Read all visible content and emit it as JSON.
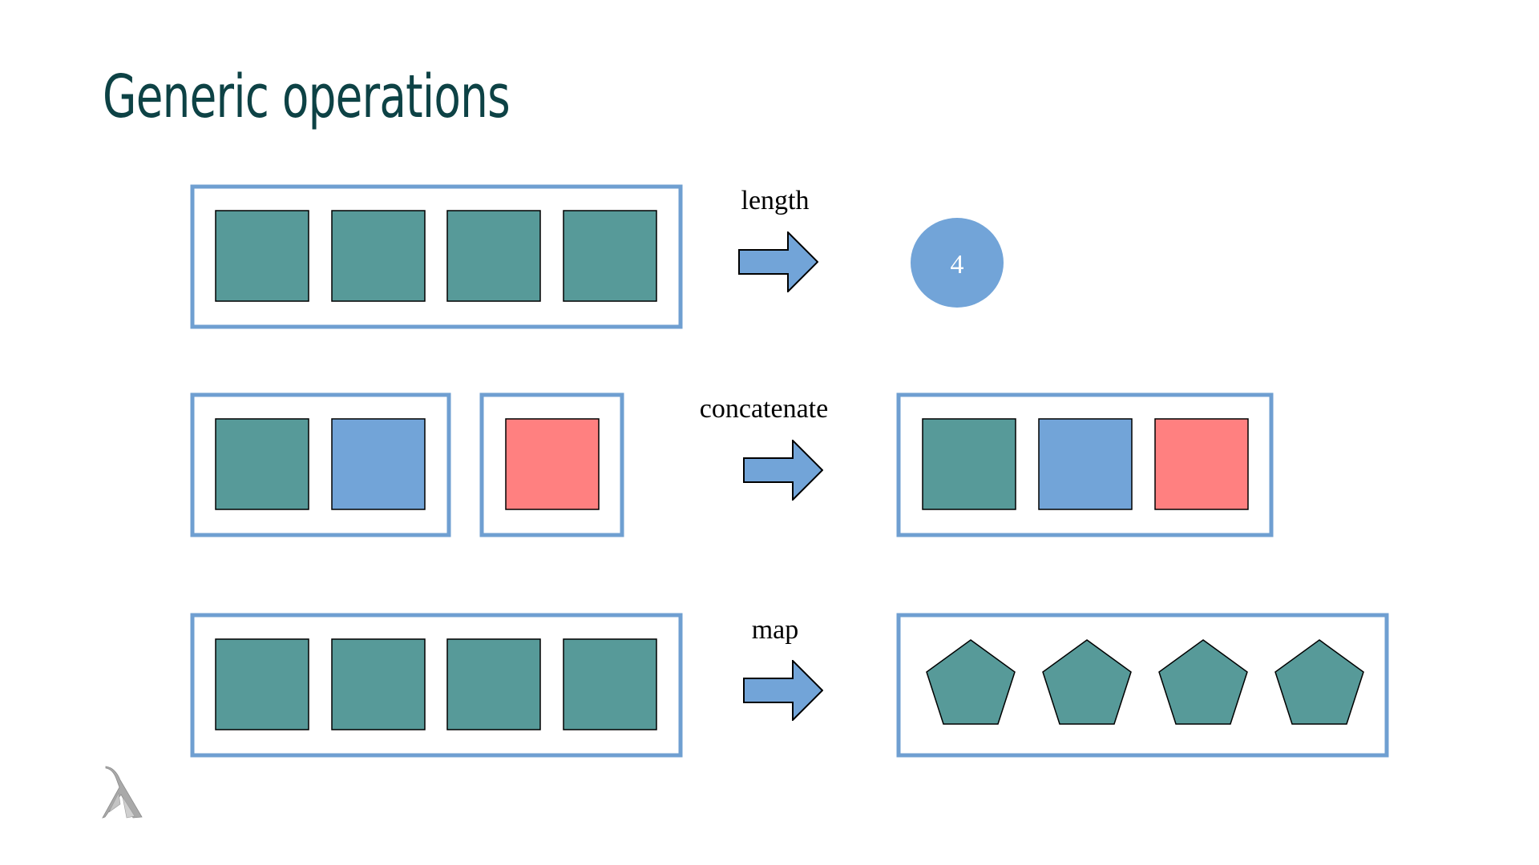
{
  "slide": {
    "title": "Generic operations"
  },
  "colors": {
    "title": "#0d4245",
    "container_border": "#6f9fd1",
    "teal": "#579a99",
    "blue": "#72a4d8",
    "red": "#ff8080",
    "arrow": "#72a4d8",
    "count_circle": "#72a4d8",
    "count_text": "#ffffff"
  },
  "operations": {
    "length": {
      "label": "length",
      "input": [
        "teal-square",
        "teal-square",
        "teal-square",
        "teal-square"
      ],
      "result": "4"
    },
    "concatenate": {
      "label": "concatenate",
      "input_a": [
        "teal-square",
        "blue-square"
      ],
      "input_b": [
        "red-square"
      ],
      "result": [
        "teal-square",
        "blue-square",
        "red-square"
      ]
    },
    "map": {
      "label": "map",
      "input": [
        "teal-square",
        "teal-square",
        "teal-square",
        "teal-square"
      ],
      "result": [
        "teal-pentagon",
        "teal-pentagon",
        "teal-pentagon",
        "teal-pentagon"
      ]
    }
  },
  "logo": {
    "icon": "lambda-logo-icon"
  }
}
